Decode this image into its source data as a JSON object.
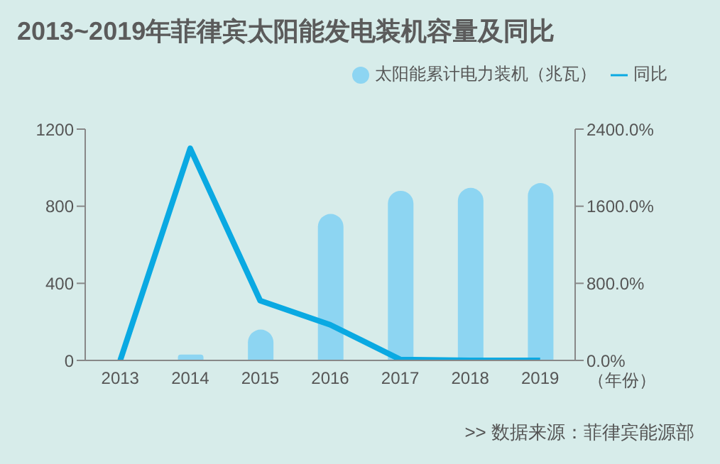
{
  "chart_data": {
    "type": "bar",
    "title": "2013~2019年菲律宾太阳能发电装机容量及同比",
    "xlabel": "（年份）",
    "categories": [
      "2013",
      "2014",
      "2015",
      "2016",
      "2017",
      "2018",
      "2019"
    ],
    "series": [
      {
        "name": "太阳能累计电力装机（兆瓦）",
        "color": "#8dd5f2",
        "values": [
          1,
          30,
          160,
          760,
          880,
          895,
          920
        ]
      },
      {
        "name": "同比",
        "type": "line",
        "axis": "y2",
        "color": "#0aa9e2",
        "values": [
          0,
          2200,
          620,
          370,
          10,
          0,
          0
        ]
      }
    ],
    "ylim": [
      0,
      1200
    ],
    "yticks": [
      0,
      400,
      800,
      1200
    ],
    "y2lim": [
      0,
      2400
    ],
    "y2ticks": [
      {
        "value": 0,
        "label": "0.0%"
      },
      {
        "value": 800,
        "label": "800.0%"
      },
      {
        "value": 1600,
        "label": "1600.0%"
      },
      {
        "value": 2400,
        "label": "2400.0%"
      }
    ],
    "legend": "top right",
    "grid": false,
    "marker": "none",
    "annotations": [
      ">>  数据来源：菲律宾能源部"
    ]
  }
}
